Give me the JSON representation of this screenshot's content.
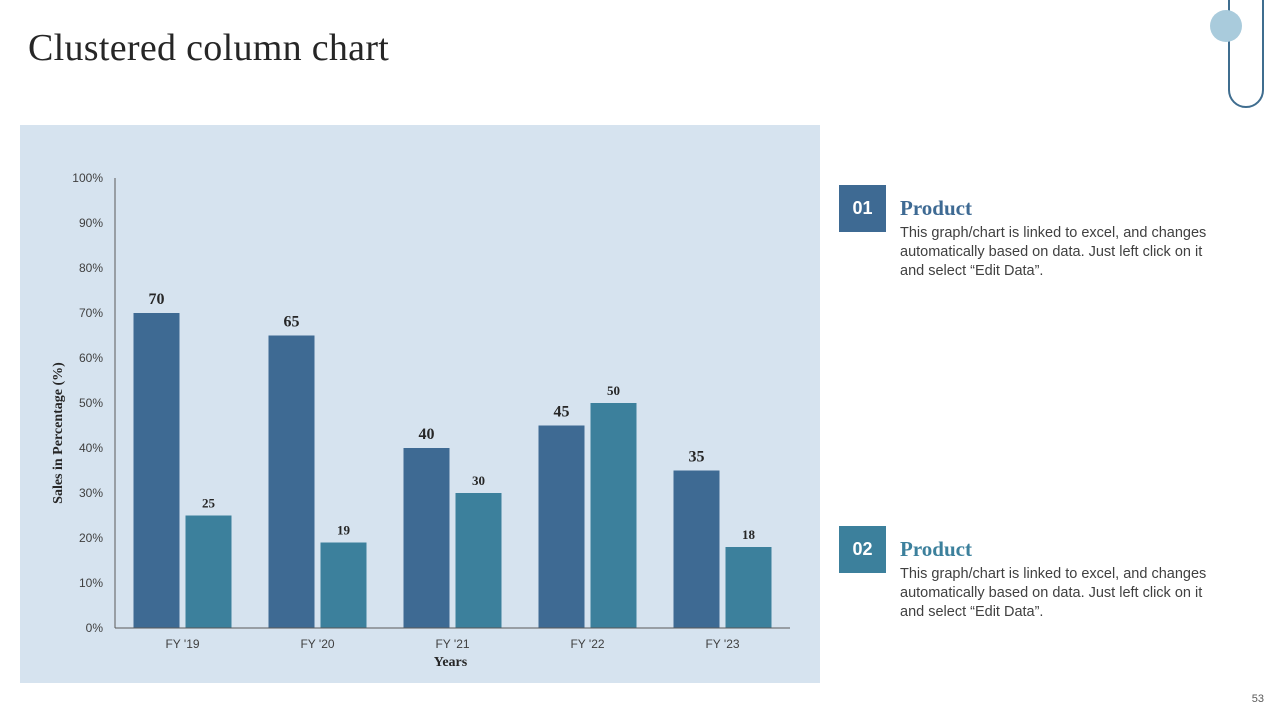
{
  "slide": {
    "title": "Clustered column chart",
    "page_number": "53"
  },
  "colors": {
    "panel_bg": "#d6e3ef",
    "series1": "#3e6a93",
    "series2": "#3c809c",
    "heading1": "#3e6a93",
    "heading2": "#3c809c",
    "deco_dot": "#a9cbdc",
    "deco_outline": "#3f6d8f"
  },
  "chart_data": {
    "type": "bar",
    "title": "",
    "xlabel": "Years",
    "ylabel": "Sales in Percentage (%)",
    "categories": [
      "FY '19",
      "FY '20",
      "FY '21",
      "FY '22",
      "FY '23"
    ],
    "series": [
      {
        "values": [
          70,
          65,
          40,
          45,
          35
        ]
      },
      {
        "values": [
          25,
          19,
          30,
          50,
          18
        ]
      }
    ],
    "ylim": [
      0,
      100
    ],
    "yticks": [
      "0%",
      "10%",
      "20%",
      "30%",
      "40%",
      "50%",
      "60%",
      "70%",
      "80%",
      "90%",
      "100%"
    ],
    "grid": false,
    "legend": "none"
  },
  "info": [
    {
      "number": "01",
      "heading": "Product",
      "text": "This graph/chart  is linked to excel, and changes automatically based on data. Just left click on it and select “Edit Data”."
    },
    {
      "number": "02",
      "heading": "Product",
      "text": "This graph/chart is linked to excel, and changes automatically based on data. Just left click on it and select “Edit Data”."
    }
  ]
}
